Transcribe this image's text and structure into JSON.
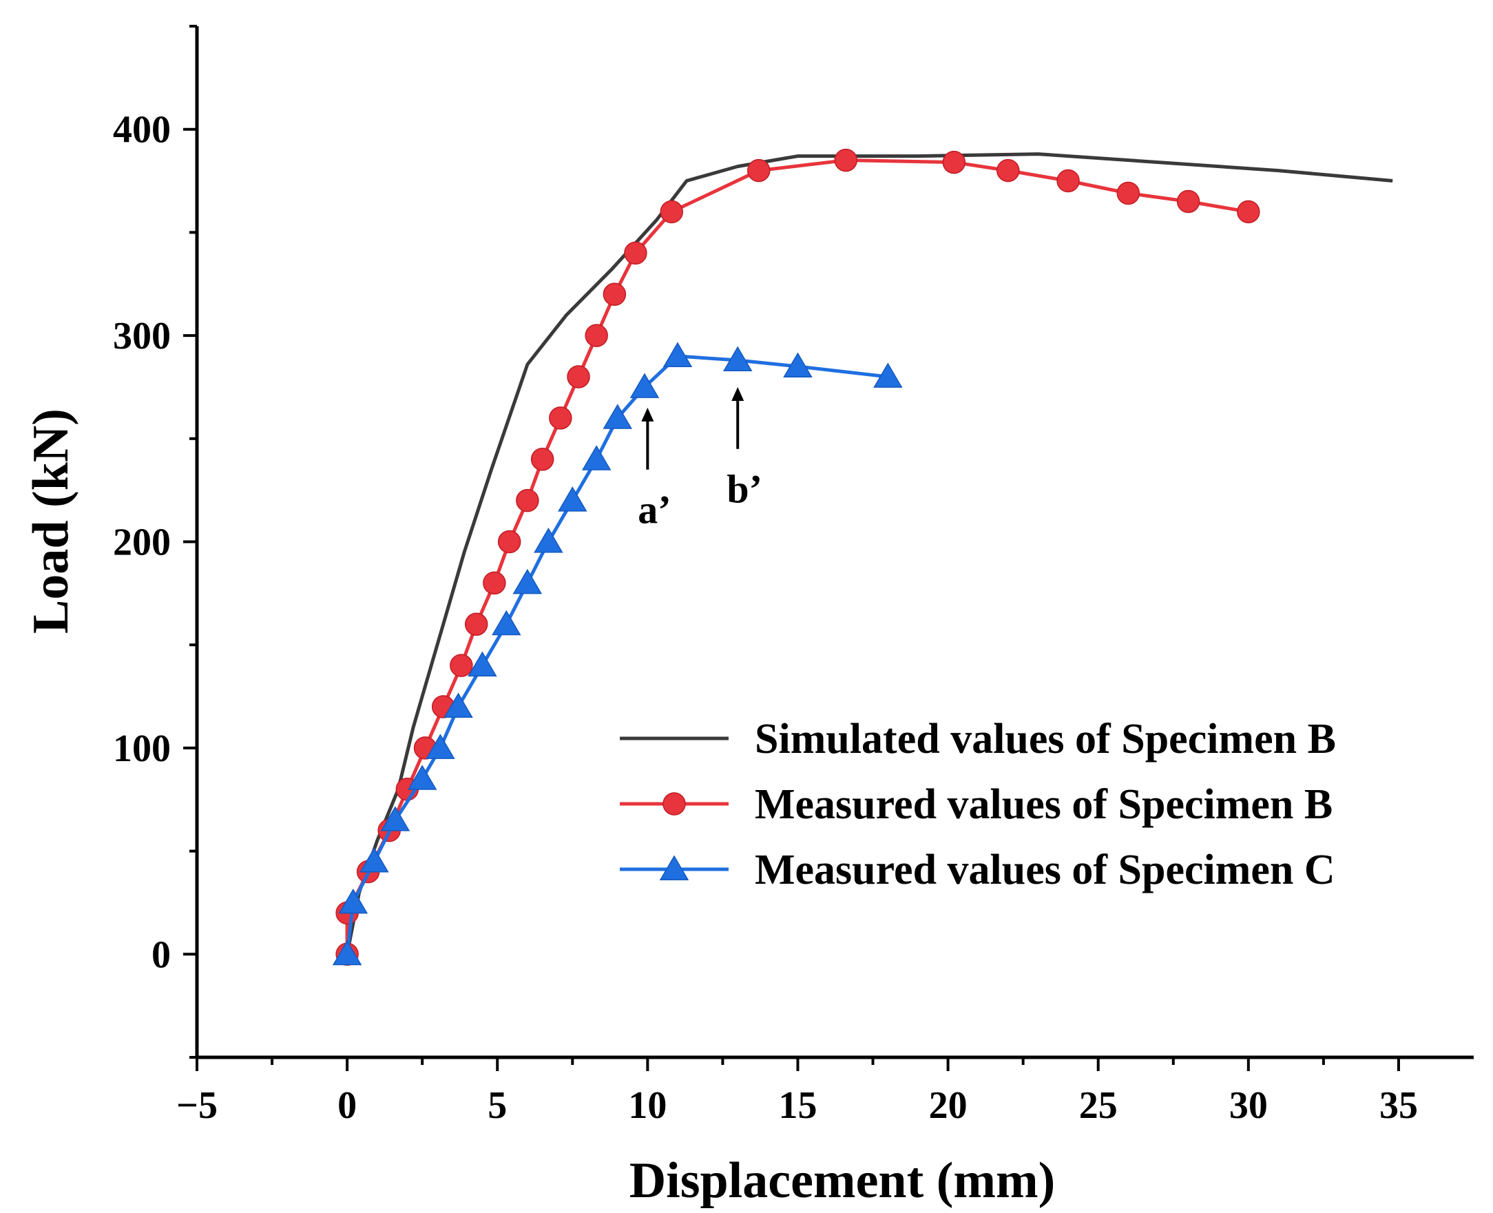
{
  "chart_data": {
    "type": "line",
    "title": "",
    "xlabel": "Displacement (mm)",
    "ylabel": "Load (kN)",
    "xlim": [
      -5,
      37.5
    ],
    "ylim": [
      -50,
      450
    ],
    "xticks": [
      -5,
      0,
      5,
      10,
      15,
      20,
      25,
      30,
      35
    ],
    "xtick_labels": [
      "−5",
      "0",
      "5",
      "10",
      "15",
      "20",
      "25",
      "30",
      "35"
    ],
    "yticks": [
      0,
      100,
      200,
      300,
      400
    ],
    "ytick_labels": [
      "0",
      "100",
      "200",
      "300",
      "400"
    ],
    "grid": false,
    "legend_position": "center-right",
    "series": [
      {
        "name": "Simulated values of Specimen B",
        "color": "#3a3a3a",
        "marker": "none",
        "x": [
          0,
          0.4,
          1.0,
          1.7,
          2.2,
          2.6,
          3.2,
          3.9,
          4.8,
          6.0,
          7.3,
          8.8,
          10.3,
          11.3,
          13.0,
          15.0,
          19.0,
          23.0,
          27.0,
          31.0,
          34.8
        ],
        "y": [
          0,
          30,
          55,
          80,
          110,
          130,
          160,
          195,
          235,
          286,
          310,
          332,
          356,
          375,
          382,
          387,
          387,
          388,
          384,
          380,
          375
        ]
      },
      {
        "name": "Measured values of Specimen B",
        "color": "#e8343c",
        "marker": "circle",
        "x": [
          0,
          0.0,
          0.7,
          1.4,
          2.0,
          2.6,
          3.2,
          3.8,
          4.3,
          4.9,
          5.4,
          6.0,
          6.5,
          7.1,
          7.7,
          8.3,
          8.9,
          9.6,
          10.8,
          13.7,
          16.6,
          20.2,
          22.0,
          24.0,
          26.0,
          28.0,
          30.0
        ],
        "y": [
          0,
          20,
          40,
          60,
          80,
          100,
          120,
          140,
          160,
          180,
          200,
          220,
          240,
          260,
          280,
          300,
          320,
          340,
          360,
          380,
          385,
          384,
          380,
          375,
          369,
          365,
          360
        ]
      },
      {
        "name": "Measured values of Specimen C",
        "color": "#1f6fe0",
        "marker": "triangle",
        "x": [
          0,
          0.2,
          0.9,
          1.6,
          2.5,
          3.1,
          3.7,
          4.5,
          5.3,
          6.0,
          6.7,
          7.5,
          8.3,
          9.0,
          9.9,
          11.0,
          13.0,
          15.0,
          18.0
        ],
        "y": [
          0,
          25,
          45,
          65,
          85,
          100,
          120,
          140,
          160,
          180,
          200,
          220,
          240,
          260,
          275,
          290,
          288,
          285,
          280
        ]
      }
    ],
    "annotations": [
      {
        "label": "a’",
        "x": 10.0,
        "y_arrow_tip": 265,
        "y_arrow_tail": 235,
        "y_text": 215
      },
      {
        "label": "b’",
        "x": 13.0,
        "y_arrow_tip": 275,
        "y_arrow_tail": 245,
        "y_text": 225
      }
    ]
  }
}
